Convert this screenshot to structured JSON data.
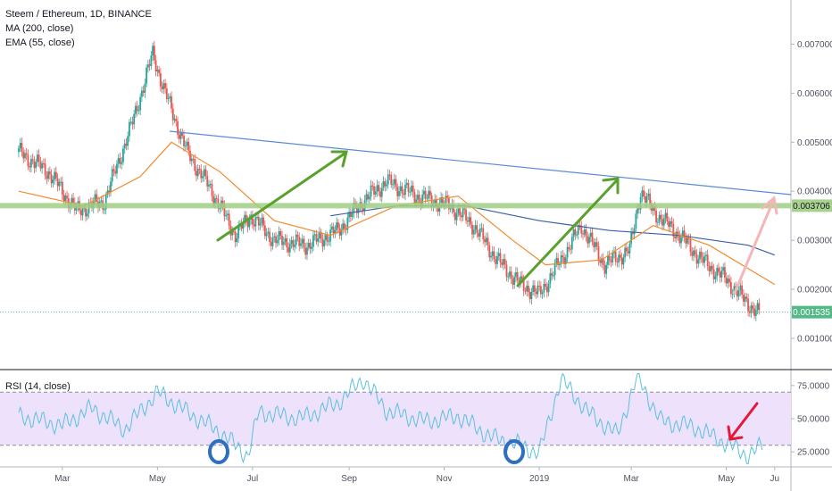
{
  "header": {
    "title": "Steem / Ethereum, 1D, BINANCE",
    "indicators": [
      "MA (200, close)",
      "EMA (55, close)"
    ]
  },
  "rsi_panel": {
    "label": "RSI (14, close)",
    "upper_band": 70,
    "lower_band": 30
  },
  "colors": {
    "up_candle": "#26a69a",
    "down_candle": "#ef5350",
    "ma200": "#3a5fa8",
    "ema55": "#f28a2e",
    "trendline": "#5b8bd6",
    "support": "#9fcf85",
    "arrow_green": "#5aa02c",
    "arrow_pink": "#f4b6b6",
    "arrow_red": "#e8173a",
    "rsi_line": "#5bc0de",
    "rsi_band": "#ede1fb",
    "circle": "#2f6fc0",
    "price_tag": "#53b987",
    "support_tag": "#a9d18e"
  },
  "chart_data": [
    {
      "type": "candlestick",
      "title": "Steem / Ethereum, 1D, BINANCE",
      "x_ticks": [
        "Mar",
        "May",
        "Jul",
        "Sep",
        "Nov",
        "2019",
        "Mar",
        "May",
        "Ju"
      ],
      "y_ticks": [
        "0.007000",
        "0.006000",
        "0.005000",
        "0.004000",
        "0.003000",
        "0.002000",
        "0.001000"
      ],
      "ylim": [
        0.0004,
        0.0079
      ],
      "last_price_label": "0.001535",
      "level_label": "0.003706",
      "support_level": 0.003706,
      "ohlc_anchors": {
        "x": [
          "2018-02-01",
          "2018-02-20",
          "2018-03-10",
          "2018-03-28",
          "2018-04-15",
          "2018-04-28",
          "2018-05-06",
          "2018-05-20",
          "2018-06-05",
          "2018-06-20",
          "2018-06-30",
          "2018-07-15",
          "2018-08-05",
          "2018-08-25",
          "2018-09-10",
          "2018-09-25",
          "2018-10-15",
          "2018-11-05",
          "2018-11-20",
          "2018-12-05",
          "2018-12-20",
          "2019-01-01",
          "2019-01-15",
          "2019-01-28",
          "2019-02-12",
          "2019-02-28",
          "2019-03-07",
          "2019-03-15",
          "2019-04-01",
          "2019-04-15",
          "2019-05-01",
          "2019-05-12",
          "2019-05-22"
        ],
        "close": [
          0.0048,
          0.0044,
          0.0036,
          0.0038,
          0.0054,
          0.0068,
          0.006,
          0.0048,
          0.004,
          0.0031,
          0.0035,
          0.003,
          0.0029,
          0.0032,
          0.0038,
          0.0042,
          0.0039,
          0.0037,
          0.0033,
          0.0026,
          0.0021,
          0.0019,
          0.0026,
          0.0033,
          0.0025,
          0.0028,
          0.004,
          0.0036,
          0.0031,
          0.0026,
          0.0022,
          0.0018,
          0.0015
        ]
      }
    },
    {
      "type": "line",
      "series": [
        {
          "name": "MA (200, close)",
          "x": [
            "2018-08-20",
            "2018-10-01",
            "2018-11-15",
            "2019-01-01",
            "2019-02-15",
            "2019-04-01",
            "2019-05-15",
            "2019-06-01"
          ],
          "y": [
            0.0035,
            0.0037,
            0.0037,
            0.0034,
            0.0032,
            0.0031,
            0.0029,
            0.0027
          ]
        },
        {
          "name": "EMA (55, close)",
          "x": [
            "2018-02-01",
            "2018-03-15",
            "2018-04-20",
            "2018-05-10",
            "2018-06-10",
            "2018-07-15",
            "2018-08-20",
            "2018-10-01",
            "2018-11-10",
            "2018-12-15",
            "2019-01-05",
            "2019-02-10",
            "2019-03-15",
            "2019-04-20",
            "2019-06-01"
          ],
          "y": [
            0.004,
            0.0037,
            0.0043,
            0.005,
            0.0044,
            0.0034,
            0.0031,
            0.0037,
            0.0039,
            0.003,
            0.0025,
            0.0026,
            0.0033,
            0.0029,
            0.0021
          ]
        }
      ]
    },
    {
      "type": "line",
      "title": "RSI (14, close)",
      "y_ticks": [
        "75.0000",
        "50.0000",
        "25.0000"
      ],
      "ylim": [
        15,
        85
      ],
      "series": [
        {
          "name": "RSI (14, close)",
          "x": [
            "2018-02-01",
            "2018-03-01",
            "2018-03-20",
            "2018-04-10",
            "2018-05-01",
            "2018-05-20",
            "2018-06-10",
            "2018-06-28",
            "2018-07-05",
            "2018-08-01",
            "2018-08-25",
            "2018-09-10",
            "2018-09-25",
            "2018-10-20",
            "2018-11-10",
            "2018-12-01",
            "2018-12-20",
            "2019-01-01",
            "2019-01-15",
            "2019-02-01",
            "2019-02-20",
            "2019-03-05",
            "2019-03-20",
            "2019-04-10",
            "2019-04-30",
            "2019-05-15",
            "2019-05-24"
          ],
          "y": [
            52,
            45,
            58,
            42,
            70,
            55,
            40,
            22,
            55,
            50,
            62,
            80,
            56,
            48,
            52,
            36,
            30,
            24,
            80,
            55,
            38,
            82,
            48,
            44,
            32,
            22,
            30
          ]
        }
      ]
    }
  ]
}
